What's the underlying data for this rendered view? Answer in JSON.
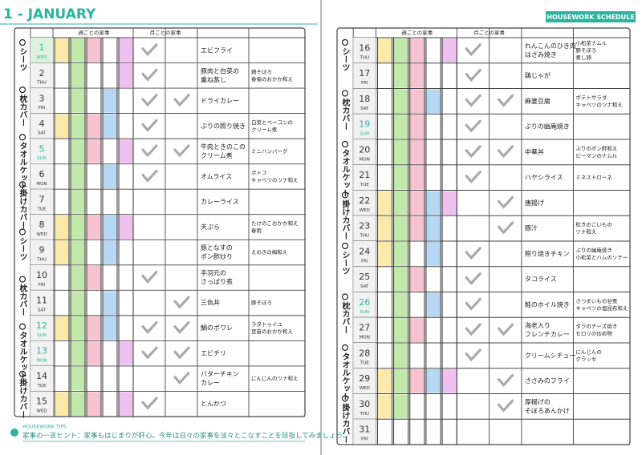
{
  "header": {
    "title": "1 - JANUARY",
    "badge": "HOUSEWORK SCHEDULE"
  },
  "pages": [
    {
      "weekly": "週ごとの家事",
      "monthly": "月ごとの家事",
      "side_labels": [
        "シーツ",
        "枕カバー",
        "タオルケット",
        "掛けカバー",
        "シーツ",
        "枕カバー",
        "タオルケット",
        "掛けカバー"
      ],
      "days": [
        {
          "day": "1",
          "weekday": "WED",
          "holiday": true,
          "fills": [
            0,
            1,
            2,
            4
          ],
          "checks": [
            true,
            false
          ],
          "dish": [
            "エビフライ"
          ],
          "side": []
        },
        {
          "day": "2",
          "weekday": "THU",
          "holiday": false,
          "fills": [
            1,
            4
          ],
          "checks": [
            true,
            false
          ],
          "dish": [
            "豚肉と白菜の",
            "重ね蒸し"
          ],
          "side": [
            "鶏そぼろ",
            "春菊のおかか和え"
          ]
        },
        {
          "day": "3",
          "weekday": "FRI",
          "holiday": false,
          "fills": [
            1,
            3
          ],
          "checks": [
            true,
            true
          ],
          "dish": [
            "ドライカレー"
          ],
          "side": []
        },
        {
          "day": "4",
          "weekday": "SAT",
          "holiday": false,
          "fills": [
            0,
            1,
            2,
            3
          ],
          "checks": [
            true,
            false
          ],
          "dish": [
            "ぶりの照り焼き"
          ],
          "side": [
            "白菜とベーコンの",
            "クリーム煮"
          ]
        },
        {
          "day": "5",
          "weekday": "SUN",
          "holiday": true,
          "fills": [
            1,
            2,
            4
          ],
          "checks": [
            true,
            true
          ],
          "dish": [
            "牛肉ときのこの",
            "クリーム煮"
          ],
          "side": [
            "ミニハンバーグ"
          ]
        },
        {
          "day": "6",
          "weekday": "MON",
          "holiday": false,
          "fills": [
            1,
            3
          ],
          "checks": [
            true,
            false
          ],
          "dish": [
            "オムライス"
          ],
          "side": [
            "ポトフ",
            "キャベツのツナ和え"
          ]
        },
        {
          "day": "7",
          "weekday": "TUE",
          "holiday": false,
          "fills": [
            1
          ],
          "checks": [
            false,
            false
          ],
          "dish": [
            "カレーライス"
          ],
          "side": []
        },
        {
          "day": "8",
          "weekday": "WED",
          "holiday": false,
          "fills": [
            0,
            1,
            2,
            3,
            4
          ],
          "checks": [
            false,
            false
          ],
          "dish": [
            "天ぷら"
          ],
          "side": [
            "たけのこおかか和え",
            "春雨"
          ]
        },
        {
          "day": "9",
          "weekday": "THU",
          "holiday": false,
          "fills": [
            0,
            1,
            3
          ],
          "checks": [
            false,
            false
          ],
          "dish": [
            "豚となすの",
            "ポン酢炒り"
          ],
          "side": [
            "えのきの梅和え"
          ]
        },
        {
          "day": "10",
          "weekday": "FRI",
          "holiday": false,
          "fills": [
            1,
            2
          ],
          "checks": [
            true,
            false
          ],
          "dish": [
            "手羽元の",
            "さっぱり煮"
          ],
          "side": []
        },
        {
          "day": "11",
          "weekday": "SAT",
          "holiday": false,
          "fills": [
            1,
            3
          ],
          "checks": [
            false,
            true
          ],
          "dish": [
            "三色丼"
          ],
          "side": [
            "豚そぼろ"
          ]
        },
        {
          "day": "12",
          "weekday": "SUN",
          "holiday": true,
          "fills": [
            0,
            1,
            2,
            3
          ],
          "checks": [
            true,
            true
          ],
          "dish": [
            "鯛のポワレ"
          ],
          "side": [
            "ラタトゥイユ",
            "豆苗のおかか和え"
          ]
        },
        {
          "day": "13",
          "weekday": "MON",
          "holiday": true,
          "fills": [
            1,
            2,
            4
          ],
          "checks": [
            true,
            true
          ],
          "dish": [
            "エビチリ"
          ],
          "side": []
        },
        {
          "day": "14",
          "weekday": "TUE",
          "holiday": false,
          "fills": [
            1
          ],
          "checks": [
            false,
            true
          ],
          "dish": [
            "バターチキン",
            "カレー"
          ],
          "side": [
            "にんじんのツナ和え"
          ]
        },
        {
          "day": "15",
          "weekday": "WED",
          "holiday": false,
          "fills": [
            0,
            1,
            2,
            4
          ],
          "checks": [
            true,
            false
          ],
          "dish": [
            "とんかつ"
          ],
          "side": []
        }
      ]
    },
    {
      "weekly": "週ごとの家事",
      "monthly": "月ごとの家事",
      "side_labels": [
        "シーツ",
        "枕カバー",
        "タオルケット",
        "掛けカバー",
        "シーツ",
        "枕カバー",
        "タオルケット",
        "掛けカバー"
      ],
      "days": [
        {
          "day": "16",
          "weekday": "THU",
          "holiday": false,
          "fills": [
            0,
            1,
            2,
            4
          ],
          "checks": [
            true,
            false
          ],
          "dish": [
            "れんこんのひき肉",
            "はさみ焼き"
          ],
          "side": [
            "小松菜ナムル",
            "豚そぼろ",
            "煮し卵"
          ]
        },
        {
          "day": "17",
          "weekday": "FRI",
          "holiday": false,
          "fills": [
            1,
            2
          ],
          "checks": [
            true,
            false
          ],
          "dish": [
            "鶏じゃが"
          ],
          "side": []
        },
        {
          "day": "18",
          "weekday": "SAT",
          "holiday": false,
          "fills": [
            1,
            2,
            3
          ],
          "checks": [
            true,
            true
          ],
          "dish": [
            "麻婆豆腐"
          ],
          "side": [
            "ポテトサラダ",
            "キャベツのツナ和え"
          ]
        },
        {
          "day": "19",
          "weekday": "SUN",
          "holiday": true,
          "fills": [
            1,
            2
          ],
          "checks": [
            true,
            false
          ],
          "dish": [
            "ぶりの幽庵焼き"
          ],
          "side": []
        },
        {
          "day": "20",
          "weekday": "MON",
          "holiday": false,
          "fills": [
            1,
            2
          ],
          "checks": [
            true,
            true
          ],
          "dish": [
            "中華丼"
          ],
          "side": [
            "ぶりのポン酢和え",
            "ピーマンのナムル"
          ]
        },
        {
          "day": "21",
          "weekday": "TUE",
          "holiday": false,
          "fills": [
            1,
            2
          ],
          "checks": [
            true,
            false
          ],
          "dish": [
            "ハヤシライス"
          ],
          "side": [
            "ミネストローネ"
          ]
        },
        {
          "day": "22",
          "weekday": "WED",
          "holiday": false,
          "fills": [
            0,
            1,
            2,
            3,
            4
          ],
          "checks": [
            false,
            true
          ],
          "dish": [
            "唐揚げ"
          ],
          "side": []
        },
        {
          "day": "23",
          "weekday": "THU",
          "holiday": false,
          "fills": [
            0,
            1,
            2,
            3
          ],
          "checks": [
            false,
            true
          ],
          "dish": [
            "豚汁"
          ],
          "side": [
            "松きのこいもの",
            "ツナ和え"
          ]
        },
        {
          "day": "24",
          "weekday": "FRI",
          "holiday": false,
          "fills": [
            0,
            1,
            3
          ],
          "checks": [
            true,
            false
          ],
          "dish": [
            "照り焼きチキン"
          ],
          "side": [
            "ぶりの幽庵焼き",
            "小松菜とハムのソテー"
          ]
        },
        {
          "day": "25",
          "weekday": "SAT",
          "holiday": false,
          "fills": [
            1,
            2
          ],
          "checks": [
            true,
            false
          ],
          "dish": [
            "タコライス"
          ],
          "side": []
        },
        {
          "day": "26",
          "weekday": "SUN",
          "holiday": true,
          "fills": [
            1,
            3
          ],
          "checks": [
            true,
            false
          ],
          "dish": [
            "鮭のホイル焼き"
          ],
          "side": [
            "さつまいもの甘煮",
            "キャベツの塩昆布和え"
          ]
        },
        {
          "day": "27",
          "weekday": "MON",
          "holiday": false,
          "fills": [
            1,
            2
          ],
          "checks": [
            true,
            true
          ],
          "dish": [
            "海老入り",
            "フレンチカレー"
          ],
          "side": [
            "タラのチーズ焼き",
            "セロリの炒め物"
          ]
        },
        {
          "day": "28",
          "weekday": "TUE",
          "holiday": false,
          "fills": [
            1
          ],
          "checks": [
            true,
            false
          ],
          "dish": [
            "クリームシチュー"
          ],
          "side": [
            "にんじんの",
            "グラッセ"
          ]
        },
        {
          "day": "29",
          "weekday": "WED",
          "holiday": false,
          "fills": [
            0,
            1,
            2,
            3,
            4
          ],
          "checks": [
            false,
            true
          ],
          "dish": [
            "ささみのフライ"
          ],
          "side": []
        },
        {
          "day": "30",
          "weekday": "THU",
          "holiday": false,
          "fills": [
            0,
            1
          ],
          "checks": [
            false,
            true
          ],
          "dish": [
            "厚揚げの",
            "そぼろあんかけ"
          ],
          "side": []
        },
        {
          "day": "31",
          "weekday": "FRI",
          "holiday": false,
          "fills": [],
          "checks": [
            false,
            false
          ],
          "dish": [],
          "side": []
        }
      ]
    }
  ],
  "footer": {
    "label": "HOUSEWORK TIPS",
    "tip": "家事の一言ヒント：家事もはじまりが肝心。今年は日々の家事を淡々とこなすことを目指してみましょう。"
  }
}
